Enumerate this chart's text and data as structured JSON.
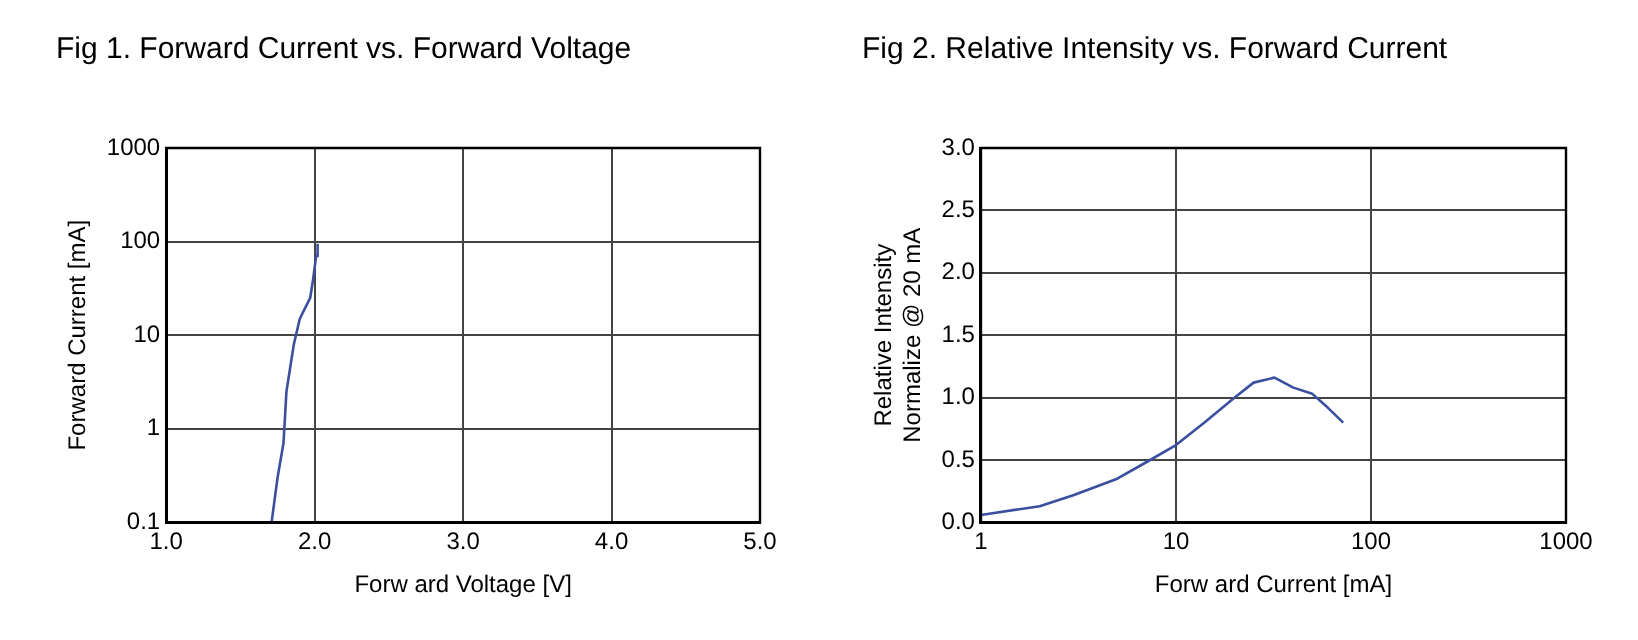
{
  "chart_data": [
    {
      "type": "line",
      "title": "Fig 1. Forward Current vs. Forward Voltage",
      "xlabel": "Forw ard Voltage [V]",
      "ylabel": "Forward Current [mA]",
      "log": "y",
      "grid": true,
      "legend": false,
      "marker": "none",
      "xlim": [
        1,
        5
      ],
      "xticks": [
        {
          "value": 1,
          "label": "1.0"
        },
        {
          "value": 2,
          "label": "2.0"
        },
        {
          "value": 3,
          "label": "3.0"
        },
        {
          "value": 4,
          "label": "4.0"
        },
        {
          "value": 5,
          "label": "5.0"
        }
      ],
      "ylim": [
        0.1,
        1000
      ],
      "yticks": [
        0.1,
        1,
        10,
        100,
        1000
      ],
      "series": [
        {
          "color": "#3a4fa0",
          "x": [
            1.71,
            1.75,
            1.79,
            1.81,
            1.86,
            1.9,
            1.97,
            1.99,
            2.01,
            2.02
          ],
          "values": [
            0.1,
            0.3,
            0.7,
            2.5,
            8,
            15,
            25,
            40,
            70,
            95
          ]
        }
      ]
    },
    {
      "type": "line",
      "title": "Fig 2. Relative Intensity vs. Forward Current",
      "xlabel": "Forw ard Current [mA]",
      "ylabel": "Relative Intensity\nNormalize @ 20 mA",
      "log": "x",
      "grid": true,
      "legend": false,
      "marker": "none",
      "xlim": [
        1,
        1000
      ],
      "xticks": [
        1,
        10,
        100,
        1000
      ],
      "ylim": [
        0,
        3
      ],
      "yticks": [
        {
          "value": 0,
          "label": "0.0"
        },
        {
          "value": 0.5,
          "label": "0.5"
        },
        {
          "value": 1,
          "label": "1.0"
        },
        {
          "value": 1.5,
          "label": "1.5"
        },
        {
          "value": 2,
          "label": "2.0"
        },
        {
          "value": 2.5,
          "label": "2.5"
        },
        {
          "value": 3,
          "label": "3.0"
        }
      ],
      "series": [
        {
          "color": "#3a4fa0",
          "x": [
            1,
            2,
            3,
            5,
            7,
            10,
            14,
            20,
            25,
            32,
            40,
            50,
            60,
            72
          ],
          "values": [
            0.06,
            0.13,
            0.22,
            0.35,
            0.48,
            0.62,
            0.8,
            1.0,
            1.12,
            1.16,
            1.08,
            1.03,
            0.92,
            0.8
          ]
        }
      ]
    }
  ]
}
